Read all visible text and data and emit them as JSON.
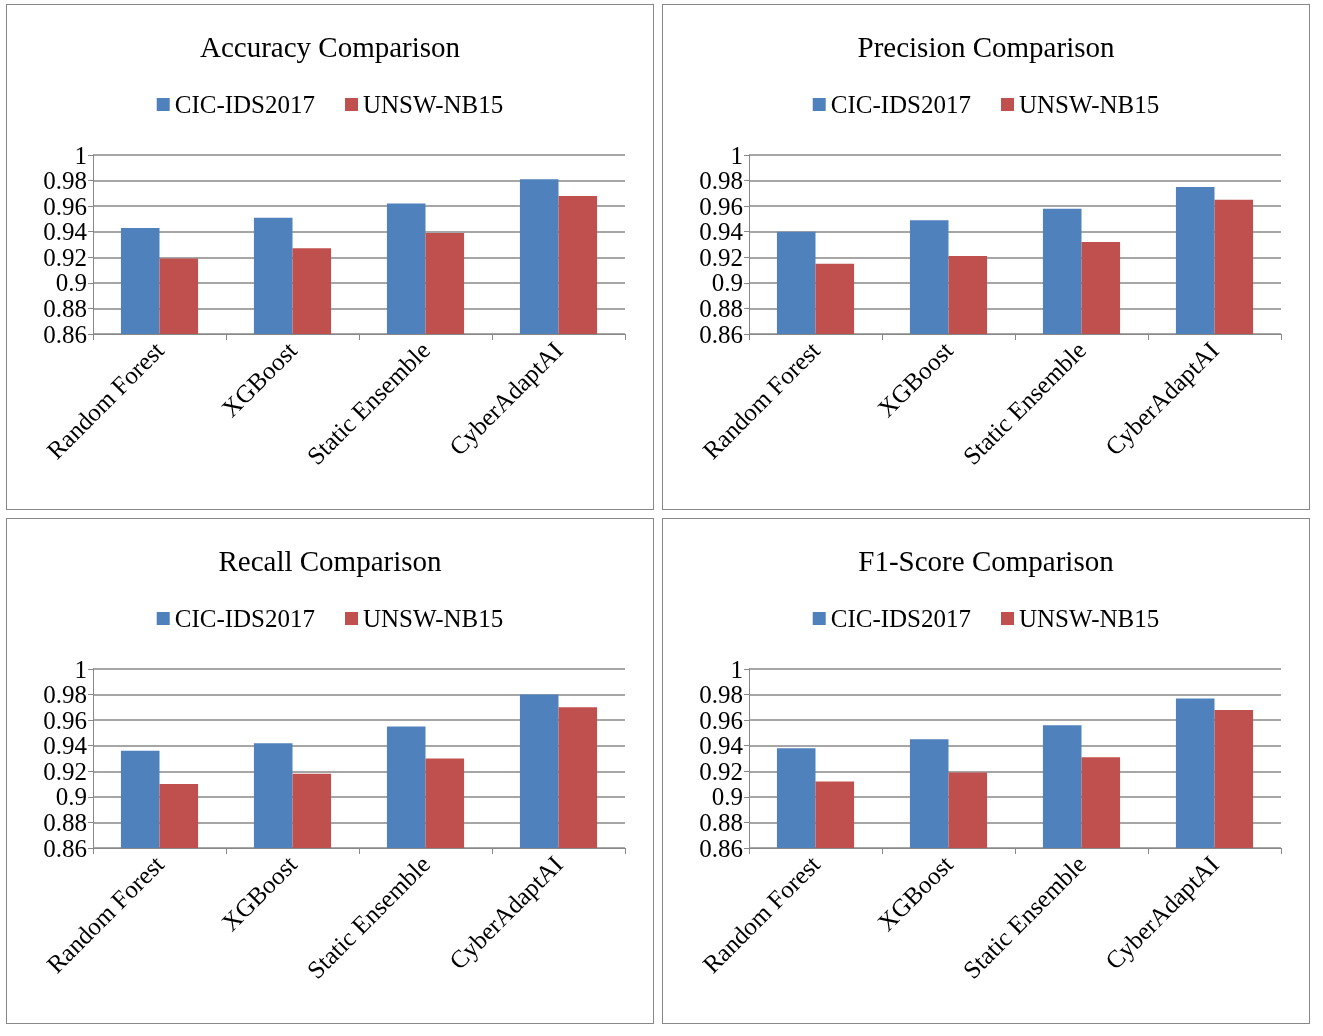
{
  "chart_data": [
    {
      "type": "bar",
      "title": "Accuracy Comparison",
      "categories": [
        "Random Forest",
        "XGBoost",
        "Static Ensemble",
        "CyberAdaptAI"
      ],
      "series": [
        {
          "name": "CIC-IDS2017",
          "color": "#4f81bd",
          "values": [
            0.943,
            0.951,
            0.962,
            0.981
          ]
        },
        {
          "name": "UNSW-NB15",
          "color": "#c0504d",
          "values": [
            0.919,
            0.927,
            0.939,
            0.968
          ]
        }
      ],
      "ylim": [
        0.86,
        1
      ],
      "yticks": [
        0.86,
        0.88,
        0.9,
        0.92,
        0.94,
        0.96,
        0.98,
        1
      ],
      "grid": "y",
      "legend": "top"
    },
    {
      "type": "bar",
      "title": "Precision Comparison",
      "categories": [
        "Random Forest",
        "XGBoost",
        "Static Ensemble",
        "CyberAdaptAI"
      ],
      "series": [
        {
          "name": "CIC-IDS2017",
          "color": "#4f81bd",
          "values": [
            0.94,
            0.949,
            0.958,
            0.975
          ]
        },
        {
          "name": "UNSW-NB15",
          "color": "#c0504d",
          "values": [
            0.915,
            0.921,
            0.932,
            0.965
          ]
        }
      ],
      "ylim": [
        0.86,
        1
      ],
      "yticks": [
        0.86,
        0.88,
        0.9,
        0.92,
        0.94,
        0.96,
        0.98,
        1
      ],
      "grid": "y",
      "legend": "top"
    },
    {
      "type": "bar",
      "title": "Recall Comparison",
      "categories": [
        "Random Forest",
        "XGBoost",
        "Static Ensemble",
        "CyberAdaptAI"
      ],
      "series": [
        {
          "name": "CIC-IDS2017",
          "color": "#4f81bd",
          "values": [
            0.936,
            0.942,
            0.955,
            0.98
          ]
        },
        {
          "name": "UNSW-NB15",
          "color": "#c0504d",
          "values": [
            0.91,
            0.918,
            0.93,
            0.97
          ]
        }
      ],
      "ylim": [
        0.86,
        1
      ],
      "yticks": [
        0.86,
        0.88,
        0.9,
        0.92,
        0.94,
        0.96,
        0.98,
        1
      ],
      "grid": "y",
      "legend": "top"
    },
    {
      "type": "bar",
      "title": "F1-Score Comparison",
      "categories": [
        "Random Forest",
        "XGBoost",
        "Static Ensemble",
        "CyberAdaptAI"
      ],
      "series": [
        {
          "name": "CIC-IDS2017",
          "color": "#4f81bd",
          "values": [
            0.938,
            0.945,
            0.956,
            0.977
          ]
        },
        {
          "name": "UNSW-NB15",
          "color": "#c0504d",
          "values": [
            0.912,
            0.919,
            0.931,
            0.968
          ]
        }
      ],
      "ylim": [
        0.86,
        1
      ],
      "yticks": [
        0.86,
        0.88,
        0.9,
        0.92,
        0.94,
        0.96,
        0.98,
        1
      ],
      "grid": "y",
      "legend": "top"
    }
  ]
}
